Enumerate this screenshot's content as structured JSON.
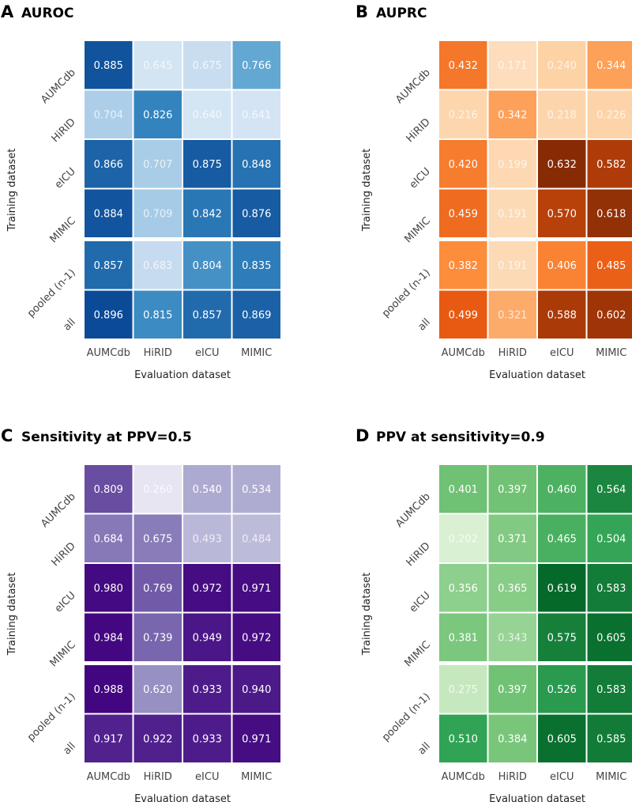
{
  "chart_data": [
    {
      "type": "heatmap",
      "panel": "A",
      "title": "AUROC",
      "xlabel": "Evaluation dataset",
      "ylabel": "Training dataset",
      "colormap": "blues",
      "x": [
        "AUMCdb",
        "HiRID",
        "eICU",
        "MIMIC"
      ],
      "y": [
        "AUMCdb",
        "HiRID",
        "eICU",
        "MIMIC",
        "pooled (n-1)",
        "all"
      ],
      "values": [
        [
          0.885,
          0.645,
          0.675,
          0.766
        ],
        [
          0.704,
          0.826,
          0.64,
          0.641
        ],
        [
          0.866,
          0.707,
          0.875,
          0.848
        ],
        [
          0.884,
          0.709,
          0.842,
          0.876
        ],
        [
          0.857,
          0.683,
          0.804,
          0.835
        ],
        [
          0.896,
          0.815,
          0.857,
          0.869
        ]
      ],
      "labels": [
        [
          "0.885",
          "0.645",
          "0.675",
          "0.766"
        ],
        [
          "0.704",
          "0.826",
          "0.640",
          "0.641"
        ],
        [
          "0.866",
          "0.707",
          "0.875",
          "0.848"
        ],
        [
          "0.884",
          "0.709",
          "0.842",
          "0.876"
        ],
        [
          "0.857",
          "0.683",
          "0.804",
          "0.835"
        ],
        [
          "0.896",
          "0.815",
          "0.857",
          "0.869"
        ]
      ]
    },
    {
      "type": "heatmap",
      "panel": "B",
      "title": "AUPRC",
      "xlabel": "Evaluation dataset",
      "ylabel": "Training dataset",
      "colormap": "oranges",
      "x": [
        "AUMCdb",
        "HiRID",
        "eICU",
        "MIMIC"
      ],
      "y": [
        "AUMCdb",
        "HiRID",
        "eICU",
        "MIMIC",
        "pooled (n-1)",
        "all"
      ],
      "values": [
        [
          0.432,
          0.171,
          0.24,
          0.344
        ],
        [
          0.216,
          0.342,
          0.218,
          0.226
        ],
        [
          0.42,
          0.199,
          0.632,
          0.582
        ],
        [
          0.459,
          0.191,
          0.57,
          0.618
        ],
        [
          0.382,
          0.191,
          0.406,
          0.485
        ],
        [
          0.499,
          0.321,
          0.588,
          0.602
        ]
      ],
      "labels": [
        [
          "0.432",
          "0.171",
          "0.240",
          "0.344"
        ],
        [
          "0.216",
          "0.342",
          "0.218",
          "0.226"
        ],
        [
          "0.420",
          "0.199",
          "0.632",
          "0.582"
        ],
        [
          "0.459",
          "0.191",
          "0.570",
          "0.618"
        ],
        [
          "0.382",
          "0.191",
          "0.406",
          "0.485"
        ],
        [
          "0.499",
          "0.321",
          "0.588",
          "0.602"
        ]
      ]
    },
    {
      "type": "heatmap",
      "panel": "C",
      "title": "Sensitivity at PPV=0.5",
      "xlabel": "Evaluation dataset",
      "ylabel": "Training dataset",
      "colormap": "purples",
      "x": [
        "AUMCdb",
        "HiRID",
        "eICU",
        "MIMIC"
      ],
      "y": [
        "AUMCdb",
        "HiRID",
        "eICU",
        "MIMIC",
        "pooled (n-1)",
        "all"
      ],
      "values": [
        [
          0.809,
          0.26,
          0.54,
          0.534
        ],
        [
          0.684,
          0.675,
          0.493,
          0.484
        ],
        [
          0.98,
          0.769,
          0.972,
          0.971
        ],
        [
          0.984,
          0.739,
          0.949,
          0.972
        ],
        [
          0.988,
          0.62,
          0.933,
          0.94
        ],
        [
          0.917,
          0.922,
          0.933,
          0.971
        ]
      ],
      "labels": [
        [
          "0.809",
          "0.260",
          "0.540",
          "0.534"
        ],
        [
          "0.684",
          "0.675",
          "0.493",
          "0.484"
        ],
        [
          "0.980",
          "0.769",
          "0.972",
          "0.971"
        ],
        [
          "0.984",
          "0.739",
          "0.949",
          "0.972"
        ],
        [
          "0.988",
          "0.620",
          "0.933",
          "0.940"
        ],
        [
          "0.917",
          "0.922",
          "0.933",
          "0.971"
        ]
      ]
    },
    {
      "type": "heatmap",
      "panel": "D",
      "title": "PPV at sensitivity=0.9",
      "xlabel": "Evaluation dataset",
      "ylabel": "Training dataset",
      "colormap": "greens",
      "x": [
        "AUMCdb",
        "HiRID",
        "eICU",
        "MIMIC"
      ],
      "y": [
        "AUMCdb",
        "HiRID",
        "eICU",
        "MIMIC",
        "pooled (n-1)",
        "all"
      ],
      "values": [
        [
          0.401,
          0.397,
          0.46,
          0.564
        ],
        [
          0.202,
          0.371,
          0.465,
          0.504
        ],
        [
          0.356,
          0.365,
          0.619,
          0.583
        ],
        [
          0.381,
          0.343,
          0.575,
          0.605
        ],
        [
          0.275,
          0.397,
          0.526,
          0.583
        ],
        [
          0.51,
          0.384,
          0.605,
          0.585
        ]
      ],
      "labels": [
        [
          "0.401",
          "0.397",
          "0.460",
          "0.564"
        ],
        [
          "0.202",
          "0.371",
          "0.465",
          "0.504"
        ],
        [
          "0.356",
          "0.365",
          "0.619",
          "0.583"
        ],
        [
          "0.381",
          "0.343",
          "0.575",
          "0.605"
        ],
        [
          "0.275",
          "0.397",
          "0.526",
          "0.583"
        ],
        [
          "0.510",
          "0.384",
          "0.605",
          "0.585"
        ]
      ]
    }
  ]
}
